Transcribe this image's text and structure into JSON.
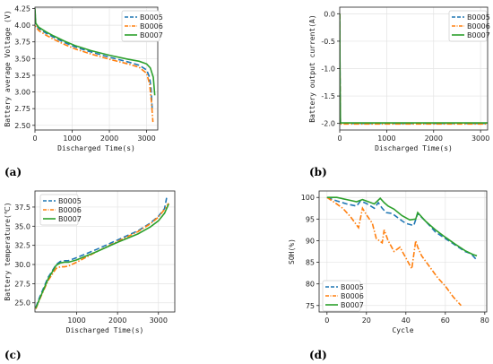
{
  "colors": {
    "B0005": "#1f77b4",
    "B0006": "#ff7f0e",
    "B0007": "#2ca02c"
  },
  "chart_data": [
    {
      "panel": "(a)",
      "type": "line",
      "xlabel": "Discharged Time(s)",
      "ylabel": "Battery average Voltage (V)",
      "xlim": [
        0,
        3300
      ],
      "ylim": [
        2.43,
        4.27
      ],
      "xticks": [
        0,
        1000,
        2000,
        3000
      ],
      "yticks": [
        2.5,
        2.75,
        3.0,
        3.25,
        3.5,
        3.75,
        4.0,
        4.25
      ],
      "ytick_labels": [
        "2.50",
        "2.75",
        "3.00",
        "3.25",
        "3.50",
        "3.75",
        "4.00",
        "4.25"
      ],
      "legend": "top-right",
      "series": [
        {
          "name": "B0005",
          "style": "dashed",
          "x": [
            0,
            20,
            100,
            300,
            500,
            800,
            1100,
            1500,
            2000,
            2500,
            2800,
            3000,
            3080,
            3120,
            3150
          ],
          "y": [
            4.22,
            4.02,
            3.95,
            3.88,
            3.82,
            3.74,
            3.67,
            3.6,
            3.52,
            3.45,
            3.4,
            3.33,
            3.22,
            3.05,
            2.75
          ]
        },
        {
          "name": "B0006",
          "style": "dashdot",
          "x": [
            0,
            20,
            100,
            300,
            500,
            800,
            1100,
            1500,
            2000,
            2500,
            2800,
            3000,
            3080,
            3130,
            3170
          ],
          "y": [
            4.1,
            3.98,
            3.92,
            3.85,
            3.79,
            3.71,
            3.64,
            3.57,
            3.49,
            3.42,
            3.37,
            3.28,
            3.12,
            2.85,
            2.55
          ]
        },
        {
          "name": "B0007",
          "style": "solid",
          "x": [
            0,
            20,
            100,
            300,
            500,
            800,
            1100,
            1500,
            2000,
            2500,
            2800,
            3000,
            3100,
            3180,
            3220
          ],
          "y": [
            4.25,
            4.03,
            3.97,
            3.9,
            3.84,
            3.76,
            3.69,
            3.62,
            3.55,
            3.49,
            3.46,
            3.42,
            3.36,
            3.22,
            2.95
          ]
        }
      ]
    },
    {
      "panel": "(b)",
      "type": "line",
      "xlabel": "Discharged Time(s)",
      "ylabel": "Battery output current(A)",
      "xlim": [
        0,
        3150
      ],
      "ylim": [
        -2.12,
        0.12
      ],
      "xticks": [
        0,
        1000,
        2000,
        3000
      ],
      "yticks": [
        -2.0,
        -1.5,
        -1.0,
        -0.5,
        0.0
      ],
      "ytick_labels": [
        "-2.0",
        "-1.5",
        "-1.0",
        "-0.5",
        "0.0"
      ],
      "legend": "top-right",
      "series": [
        {
          "name": "B0005",
          "style": "dashed",
          "x": [
            0,
            5,
            15,
            3150
          ],
          "y": [
            0.0,
            -1.0,
            -2.0,
            -2.0
          ]
        },
        {
          "name": "B0006",
          "style": "dashdot",
          "x": [
            0,
            5,
            15,
            3150
          ],
          "y": [
            0.0,
            -1.1,
            -2.01,
            -2.01
          ]
        },
        {
          "name": "B0007",
          "style": "solid",
          "x": [
            0,
            5,
            15,
            3150
          ],
          "y": [
            0.0,
            -1.0,
            -1.99,
            -1.99
          ]
        }
      ]
    },
    {
      "panel": "(c)",
      "type": "line",
      "xlabel": "Discharged Time(s)",
      "ylabel": "Battery temperature(℃)",
      "xlim": [
        -20,
        3400
      ],
      "ylim": [
        23.8,
        39.6
      ],
      "xticks": [
        1000,
        2000,
        3000
      ],
      "yticks": [
        25.0,
        27.5,
        30.0,
        32.5,
        35.0,
        37.5
      ],
      "ytick_labels": [
        "25.0",
        "27.5",
        "30.0",
        "32.5",
        "35.0",
        "37.5"
      ],
      "legend": "top-left",
      "series": [
        {
          "name": "B0005",
          "style": "dashed",
          "x": [
            0,
            100,
            300,
            500,
            600,
            700,
            800,
            1000,
            1500,
            2000,
            2500,
            2800,
            3000,
            3150,
            3200
          ],
          "y": [
            24.4,
            25.8,
            28.3,
            30.0,
            30.4,
            30.5,
            30.5,
            30.9,
            32.0,
            33.2,
            34.4,
            35.4,
            36.3,
            37.3,
            38.7
          ]
        },
        {
          "name": "B0006",
          "style": "dashdot",
          "x": [
            0,
            100,
            300,
            500,
            600,
            700,
            800,
            1000,
            1500,
            2000,
            2500,
            2800,
            3000,
            3150,
            3250
          ],
          "y": [
            24.2,
            25.5,
            27.9,
            29.5,
            29.7,
            29.7,
            29.8,
            30.3,
            31.7,
            33.0,
            34.3,
            35.3,
            36.2,
            37.2,
            38.0
          ]
        },
        {
          "name": "B0007",
          "style": "solid",
          "x": [
            0,
            100,
            300,
            500,
            600,
            700,
            800,
            1000,
            1500,
            2000,
            2500,
            2800,
            3000,
            3150,
            3250
          ],
          "y": [
            24.3,
            25.6,
            28.1,
            29.9,
            30.2,
            30.3,
            30.3,
            30.6,
            31.7,
            32.9,
            34.0,
            34.9,
            35.7,
            36.7,
            37.9
          ]
        }
      ]
    },
    {
      "panel": "(d)",
      "type": "line",
      "xlabel": "Cycle",
      "ylabel": "SOH(%)",
      "xlim": [
        -4,
        81
      ],
      "ylim": [
        73.5,
        101.5
      ],
      "xticks": [
        0,
        20,
        40,
        60,
        80
      ],
      "yticks": [
        75,
        80,
        85,
        90,
        95,
        100
      ],
      "ytick_labels": [
        "75",
        "80",
        "85",
        "90",
        "95",
        "100"
      ],
      "legend": "bottom-left",
      "series": [
        {
          "name": "B0005",
          "style": "dashed",
          "x": [
            0,
            5,
            10,
            15,
            17,
            20,
            24,
            26,
            28,
            30,
            33,
            38,
            40,
            44,
            46,
            50,
            55,
            60,
            65,
            70,
            73,
            76
          ],
          "y": [
            100,
            99.2,
            98.5,
            98,
            99.2,
            98.6,
            97.5,
            98.8,
            97.5,
            96.5,
            96.3,
            94.6,
            94,
            93.5,
            96.3,
            94.5,
            92,
            90.5,
            89,
            87.5,
            87,
            85.5
          ]
        },
        {
          "name": "B0006",
          "style": "dashdot",
          "x": [
            0,
            4,
            8,
            12,
            16,
            18,
            20,
            23,
            25,
            28,
            29,
            31,
            34,
            37,
            40,
            43,
            45,
            46,
            48,
            52,
            56,
            60,
            64,
            68
          ],
          "y": [
            100,
            98.8,
            97.5,
            95.5,
            93,
            97.5,
            96,
            94,
            90.5,
            89.5,
            92.5,
            90,
            87.5,
            88.5,
            86,
            83.5,
            90,
            88.5,
            86.5,
            84,
            81.5,
            79.5,
            77,
            75
          ]
        },
        {
          "name": "B0007",
          "style": "solid",
          "x": [
            0,
            5,
            10,
            15,
            18,
            21,
            24,
            27,
            29,
            31,
            34,
            38,
            42,
            45,
            46,
            50,
            55,
            60,
            65,
            70,
            74,
            76
          ],
          "y": [
            100,
            100,
            99.5,
            99,
            99.5,
            99,
            98.5,
            99.8,
            98.8,
            98,
            97.3,
            95.8,
            94.8,
            95,
            96.5,
            94.5,
            92.5,
            90.8,
            89.2,
            87.7,
            86.8,
            86.5
          ]
        }
      ]
    }
  ]
}
